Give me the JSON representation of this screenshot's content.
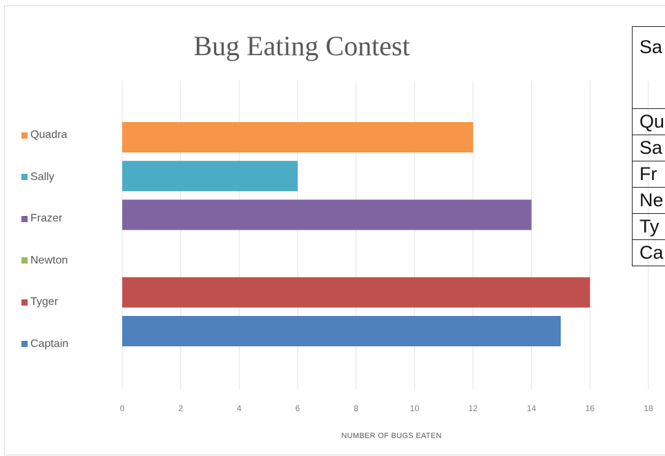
{
  "chart_data": {
    "type": "bar",
    "orientation": "horizontal",
    "title": "Bug Eating Contest",
    "xlabel": "NUMBER OF BUGS EATEN",
    "ylabel": "",
    "xlim": [
      0,
      18
    ],
    "x_ticks": [
      "0",
      "2",
      "4",
      "6",
      "8",
      "10",
      "12",
      "14",
      "16",
      "18"
    ],
    "grid": true,
    "legend_position": "left",
    "categories": [
      "Quadra",
      "Sally",
      "Frazer",
      "Newton",
      "Tyger",
      "Captain"
    ],
    "values": [
      12,
      6,
      14,
      0,
      16,
      15
    ],
    "colors": [
      "#f79646",
      "#4bacc6",
      "#8064a2",
      "#9bbb59",
      "#c0504d",
      "#4f81bd"
    ]
  },
  "side_table": {
    "header": "Sa",
    "rows": [
      "Qu",
      "Sa",
      "Fr",
      "Ne",
      "Ty",
      "Ca"
    ]
  }
}
